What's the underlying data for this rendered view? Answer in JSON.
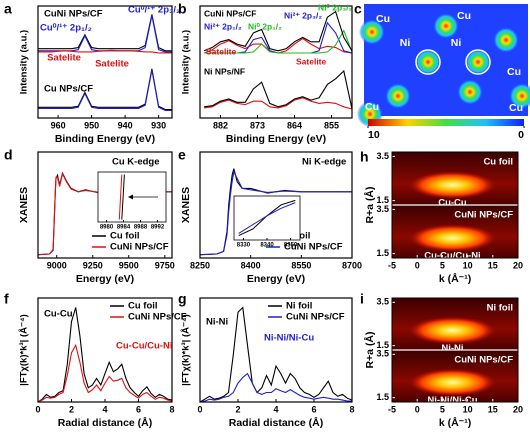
{
  "chart_data": [
    {
      "type": "line",
      "panel": "a",
      "x_label": "Binding Energy (eV)",
      "y_label": "Intensity (a.u.)",
      "xlim": [
        966,
        926
      ],
      "xticks": [
        960,
        950,
        940,
        930
      ],
      "ylim": [
        0,
        10.5
      ],
      "x": [
        966,
        964,
        962,
        960,
        958,
        956,
        954,
        952,
        950,
        948,
        946,
        944,
        942,
        940,
        938,
        936,
        934,
        932,
        930,
        928,
        926
      ],
      "series": [
        {
          "color": "#000000",
          "values": [
            6.5,
            6.5,
            6.5,
            6.5,
            6.5,
            6.5,
            6.6,
            7.8,
            6.6,
            6.5,
            6.5,
            6.5,
            6.5,
            6.5,
            6.5,
            6.5,
            6.8,
            9.7,
            6.6,
            6.3,
            6.3
          ]
        },
        {
          "color": "#1f1fd0",
          "values": [
            6.3,
            6.3,
            6.3,
            6.3,
            6.3,
            6.3,
            6.4,
            7.7,
            6.4,
            6.3,
            6.3,
            6.3,
            6.3,
            6.3,
            6.3,
            6.3,
            6.6,
            9.6,
            6.4,
            6.2,
            6.2
          ]
        },
        {
          "color": "#e01010",
          "values": [
            6.2,
            6.2,
            6.2,
            6.25,
            6.3,
            6.25,
            6.2,
            6.2,
            6.2,
            6.25,
            6.3,
            6.35,
            6.3,
            6.3,
            6.3,
            6.25,
            6.2,
            6.2,
            6.1,
            6.1,
            6.1
          ]
        },
        {
          "color": "#000000",
          "values": [
            1,
            1,
            1,
            1,
            1,
            1,
            1.1,
            2.4,
            1.1,
            1,
            1,
            1,
            1,
            1,
            1,
            1,
            1.3,
            4.6,
            1.1,
            0.8,
            0.8
          ]
        },
        {
          "color": "#1f1fd0",
          "values": [
            0.9,
            0.9,
            0.9,
            0.9,
            0.9,
            0.9,
            1.0,
            2.3,
            1.0,
            0.9,
            0.9,
            0.9,
            0.9,
            0.9,
            0.9,
            0.9,
            1.2,
            4.5,
            1.0,
            0.7,
            0.7
          ]
        }
      ],
      "annotations": [
        {
          "text": "CuNi NPs/CF",
          "color": "#000000"
        },
        {
          "text": "Cu⁰/¹⁺ 2p₁/₂",
          "color": "#1f1fd0"
        },
        {
          "text": "Cu⁰/¹⁺ 2p₃/₂",
          "color": "#1f1fd0"
        },
        {
          "text": "Satelite",
          "color": "#e01010"
        },
        {
          "text": "Satelite",
          "color": "#e01010"
        },
        {
          "text": "Cu NPs/CF",
          "color": "#000000"
        }
      ]
    },
    {
      "type": "line",
      "panel": "b",
      "x_label": "Binding Energy (eV)",
      "y_label": "Intensity (a.u.)",
      "xlim": [
        887,
        850
      ],
      "xticks": [
        882,
        873,
        864,
        855
      ],
      "ylim": [
        0,
        10
      ],
      "x": [
        886,
        884,
        882,
        880,
        878,
        876,
        874,
        872,
        870,
        868,
        866,
        864,
        862,
        860,
        858,
        856,
        854,
        852,
        850
      ],
      "series": [
        {
          "color": "#e01010",
          "values": [
            5.8,
            6.1,
            6.6,
            6.9,
            6.5,
            6.2,
            6.6,
            6.6,
            6.0,
            5.8,
            6.0,
            6.6,
            7.1,
            6.6,
            6.2,
            6.4,
            6.3,
            5.9,
            5.8
          ]
        },
        {
          "color": "#1f1fd0",
          "values": [
            5.8,
            5.8,
            5.8,
            5.8,
            5.8,
            5.9,
            7.0,
            7.2,
            6.0,
            5.8,
            5.8,
            5.8,
            5.8,
            5.8,
            6.0,
            8.5,
            7.6,
            6.0,
            5.8
          ]
        },
        {
          "color": "#22bb22",
          "values": [
            5.8,
            5.8,
            5.8,
            5.8,
            5.8,
            5.8,
            5.9,
            6.6,
            5.9,
            5.8,
            5.8,
            5.8,
            5.8,
            5.8,
            5.8,
            5.9,
            6.5,
            7.8,
            5.9
          ]
        },
        {
          "color": "#000000",
          "values": [
            6.0,
            6.3,
            6.8,
            7.0,
            6.6,
            6.4,
            7.6,
            7.9,
            6.2,
            6.0,
            6.2,
            6.8,
            7.2,
            6.8,
            6.8,
            9.0,
            9.5,
            7.2,
            6.0
          ]
        },
        {
          "color": "#e01010",
          "values": [
            0.9,
            1.0,
            1.4,
            1.6,
            1.3,
            1.2,
            1.5,
            1.5,
            1.0,
            0.9,
            1.1,
            1.6,
            1.8,
            1.5,
            1.3,
            1.4,
            1.3,
            1.0,
            0.8
          ]
        },
        {
          "color": "#000000",
          "values": [
            1.0,
            1.1,
            1.5,
            1.7,
            1.4,
            1.4,
            2.6,
            3.2,
            1.3,
            1.0,
            1.2,
            1.7,
            1.9,
            1.6,
            1.8,
            3.0,
            3.5,
            4.2,
            0.8
          ]
        }
      ],
      "annotations": [
        {
          "text": "CuNi NPs/CF",
          "color": "#000000"
        },
        {
          "text": "Ni²⁺ 2p₁/₂",
          "color": "#1f1fd0"
        },
        {
          "text": "Ni⁰ 2p₁/₂",
          "color": "#22bb22"
        },
        {
          "text": "Ni²⁺ 2p₃/₂",
          "color": "#1f1fd0"
        },
        {
          "text": "Ni⁰ 2p₃/₂",
          "color": "#22bb22"
        },
        {
          "text": "Satelite",
          "color": "#e01010"
        },
        {
          "text": "Ni NPs/NF",
          "color": "#000000"
        },
        {
          "text": "Satelite",
          "color": "#e01010"
        }
      ]
    },
    {
      "type": "image",
      "panel": "c",
      "labels": [
        "Cu",
        "Ni",
        "Ni",
        "Cu",
        "Cu",
        "Cu",
        "Cu"
      ],
      "clim": [
        10,
        0
      ],
      "cticks": [
        10,
        0
      ]
    },
    {
      "type": "line",
      "panel": "d",
      "x_label": "Energy (eV)",
      "y_label": "XANES",
      "xlim": [
        8870,
        9800
      ],
      "xticks": [
        9000,
        9250,
        9500,
        9750
      ],
      "ylim": [
        0,
        1.6
      ],
      "x": [
        8870,
        8950,
        8975,
        8985,
        8990,
        8995,
        9005,
        9020,
        9040,
        9070,
        9100,
        9150,
        9200,
        9300,
        9400,
        9500,
        9600,
        9700,
        9800
      ],
      "series": [
        {
          "name": "Cu foil",
          "color": "#000000",
          "values": [
            0.05,
            0.06,
            0.12,
            0.7,
            1.0,
            1.2,
            1.25,
            1.1,
            1.28,
            1.15,
            1.05,
            1.0,
            1.03,
            0.98,
            1.0,
            1.0,
            1.0,
            1.0,
            1.0
          ]
        },
        {
          "name": "CuNi NPs/CF",
          "color": "#e01010",
          "values": [
            0.05,
            0.06,
            0.13,
            0.72,
            1.0,
            1.22,
            1.22,
            1.08,
            1.27,
            1.14,
            1.04,
            1.0,
            1.02,
            0.99,
            1.0,
            1.0,
            1.0,
            1.0,
            1.0
          ]
        }
      ],
      "annotations": [
        {
          "text": "Cu K-edge",
          "color": "#000000"
        }
      ],
      "inset": {
        "xlim": [
          8978,
          8994
        ],
        "xticks": [
          8980,
          8984,
          8988,
          8992
        ],
        "ylim": [
          0,
          1
        ],
        "x": [
          8983.0,
          8983.6,
          8984.2
        ],
        "series": [
          {
            "color": "#e01010",
            "values": [
              0.05,
              0.95,
              null
            ]
          },
          {
            "color": "#000000",
            "values": [
              null,
              0.05,
              0.95
            ]
          }
        ]
      }
    },
    {
      "type": "line",
      "panel": "e",
      "x_label": "Energy (eV)",
      "y_label": "XANES",
      "xlim": [
        8250,
        8700
      ],
      "xticks": [
        8250,
        8400,
        8550,
        8700
      ],
      "ylim": [
        0,
        1.6
      ],
      "x": [
        8250,
        8300,
        8320,
        8330,
        8335,
        8340,
        8345,
        8350,
        8360,
        8375,
        8400,
        8450,
        8500,
        8550,
        8600,
        8650,
        8700
      ],
      "series": [
        {
          "name": "Ni foil",
          "color": "#000000",
          "values": [
            0.05,
            0.06,
            0.1,
            0.4,
            0.8,
            1.05,
            1.25,
            1.35,
            1.15,
            1.05,
            1.05,
            0.98,
            1.02,
            1.0,
            1.0,
            1.0,
            1.0
          ]
        },
        {
          "name": "CuNi NPs/CF",
          "color": "#1f1fd0",
          "values": [
            0.05,
            0.06,
            0.1,
            0.35,
            0.7,
            0.95,
            1.15,
            1.3,
            1.2,
            1.05,
            1.03,
            0.99,
            1.01,
            1.0,
            1.0,
            1.0,
            1.0
          ]
        }
      ],
      "annotations": [
        {
          "text": "Ni K-edge",
          "color": "#000000"
        }
      ],
      "inset": {
        "xlim": [
          8326,
          8354
        ],
        "xticks": [
          8330,
          8340,
          8350
        ],
        "ylim": [
          0,
          1
        ],
        "x": [
          8328,
          8334,
          8340,
          8346,
          8352
        ],
        "series": [
          {
            "color": "#000000",
            "values": [
              0.1,
              0.25,
              0.55,
              0.8,
              0.9
            ]
          },
          {
            "color": "#1f1fd0",
            "values": [
              0.15,
              0.35,
              0.55,
              0.72,
              0.85
            ]
          }
        ]
      }
    },
    {
      "type": "wavelet",
      "panel": "h",
      "x_label": "k (Å⁻¹)",
      "y_label": "R+a (Å)",
      "xlim": [
        -5,
        20
      ],
      "xticks": [
        -5,
        0,
        5,
        10,
        15,
        20
      ],
      "ylim": [
        1.3,
        3.7
      ],
      "yticks": [
        1.5,
        3.5
      ],
      "subplots": [
        {
          "label": "Cu foil",
          "peak_label": "Cu-Cu",
          "peak_k": 7,
          "peak_r": 2.2
        },
        {
          "label": "CuNi NPs/CF",
          "peak_label": "Cu-Cu/Cu-Ni",
          "peak_k": 7,
          "peak_r": 2.2
        }
      ]
    },
    {
      "type": "line",
      "panel": "f",
      "x_label": "Radial distance (Å)",
      "y_label": "|FTχ(k)*k³| (Å⁻⁴)",
      "xlim": [
        0,
        8
      ],
      "xticks": [
        0,
        2,
        4,
        6,
        8
      ],
      "ylim": [
        0,
        11
      ],
      "x": [
        0,
        0.25,
        0.5,
        0.75,
        1,
        1.25,
        1.5,
        1.75,
        2,
        2.25,
        2.5,
        2.75,
        3,
        3.25,
        3.5,
        3.75,
        4,
        4.25,
        4.5,
        4.75,
        5,
        5.25,
        5.5,
        5.75,
        6,
        6.25,
        6.5,
        6.75,
        7,
        7.25,
        7.5,
        7.75,
        8
      ],
      "series": [
        {
          "name": "Cu foil",
          "color": "#000000",
          "values": [
            0,
            0.3,
            0.8,
            0.5,
            0.6,
            1.0,
            1.2,
            4.0,
            8.5,
            10.0,
            7.0,
            3.0,
            1.5,
            1.8,
            2.5,
            1.8,
            3.0,
            4.2,
            3.2,
            3.5,
            4.0,
            2.5,
            1.5,
            1.0,
            0.6,
            1.2,
            1.6,
            0.9,
            0.5,
            0.8,
            0.6,
            0.3,
            0.2
          ]
        },
        {
          "name": "CuNi NPs/CF",
          "color": "#e01010",
          "values": [
            0,
            0.2,
            0.5,
            0.4,
            0.5,
            0.8,
            1.0,
            2.8,
            5.2,
            6.0,
            4.2,
            2.0,
            1.0,
            1.3,
            1.8,
            1.2,
            2.0,
            2.7,
            2.2,
            2.3,
            2.5,
            1.5,
            1.0,
            0.7,
            0.4,
            0.8,
            1.0,
            0.6,
            0.3,
            0.5,
            0.4,
            0.2,
            0.1
          ]
        }
      ],
      "annotations": [
        {
          "text": "Cu-Cu",
          "color": "#000000"
        },
        {
          "text": "Cu-Cu/Cu-Ni",
          "color": "#e01010"
        }
      ]
    },
    {
      "type": "line",
      "panel": "g",
      "x_label": "Radial distance (Å)",
      "y_label": "|FTχ(k)*k³| (Å⁻⁴)",
      "xlim": [
        0,
        8
      ],
      "xticks": [
        0,
        2,
        4,
        6,
        8
      ],
      "ylim": [
        0,
        11
      ],
      "x": [
        0,
        0.25,
        0.5,
        0.75,
        1,
        1.25,
        1.5,
        1.75,
        2,
        2.25,
        2.5,
        2.75,
        3,
        3.25,
        3.5,
        3.75,
        4,
        4.25,
        4.5,
        4.75,
        5,
        5.25,
        5.5,
        5.75,
        6,
        6.25,
        6.5,
        6.75,
        7,
        7.25,
        7.5,
        7.75,
        8
      ],
      "series": [
        {
          "name": "Ni foil",
          "color": "#000000",
          "values": [
            0,
            0.3,
            0.6,
            0.3,
            0.4,
            0.6,
            1.0,
            5.0,
            9.5,
            10.0,
            6.0,
            2.0,
            1.0,
            1.5,
            2.8,
            1.8,
            3.8,
            3.0,
            2.0,
            3.0,
            2.5,
            1.5,
            1.0,
            0.8,
            0.5,
            0.8,
            1.5,
            2.2,
            1.0,
            0.6,
            0.8,
            0.4,
            0.2
          ]
        },
        {
          "name": "CuNi NPs/CF",
          "color": "#1f1fd0",
          "values": [
            0,
            0.1,
            0.3,
            0.2,
            0.3,
            0.5,
            0.6,
            1.0,
            2.0,
            2.6,
            3.0,
            2.0,
            1.0,
            0.8,
            1.0,
            1.0,
            1.4,
            1.2,
            1.0,
            1.3,
            1.0,
            0.7,
            0.5,
            0.4,
            0.3,
            0.4,
            0.5,
            0.4,
            0.3,
            0.3,
            0.2,
            0.1,
            0.1
          ]
        }
      ],
      "annotations": [
        {
          "text": "Ni-Ni",
          "color": "#000000"
        },
        {
          "text": "Ni-Ni/Ni-Cu",
          "color": "#1f1fd0"
        }
      ]
    },
    {
      "type": "wavelet",
      "panel": "i",
      "x_label": "k (Å⁻¹)",
      "y_label": "R+a (Å)",
      "xlim": [
        -5,
        20
      ],
      "xticks": [
        -5,
        0,
        5,
        10,
        15,
        20
      ],
      "ylim": [
        1.3,
        3.7
      ],
      "yticks": [
        1.5,
        3.5
      ],
      "subplots": [
        {
          "label": "Ni foil",
          "peak_label": "Ni-Ni",
          "peak_k": 7,
          "peak_r": 2.2
        },
        {
          "label": "CuNi NPs/CF",
          "peak_label": "Ni-Ni/Ni-Cu",
          "peak_k": 7,
          "peak_r": 2.2
        }
      ]
    }
  ]
}
